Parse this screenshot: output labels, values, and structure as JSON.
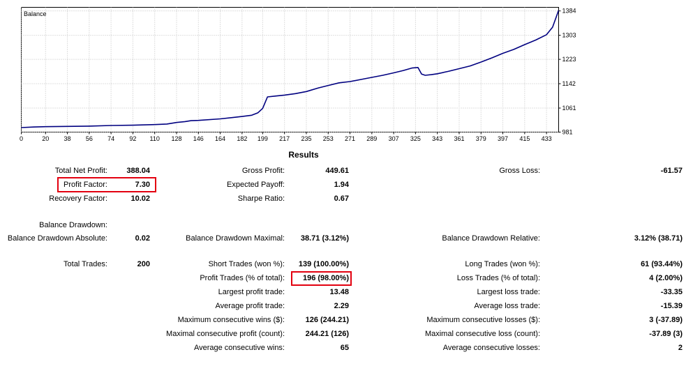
{
  "chart_data": {
    "type": "line",
    "title": "Balance",
    "xlabel": "",
    "ylabel": "",
    "xlim": [
      0,
      443
    ],
    "ylim": [
      981,
      1396
    ],
    "x_ticks": [
      "0",
      "20",
      "38",
      "56",
      "74",
      "92",
      "110",
      "128",
      "146",
      "164",
      "182",
      "199",
      "217",
      "235",
      "253",
      "271",
      "289",
      "307",
      "325",
      "343",
      "361",
      "379",
      "397",
      "415",
      "433"
    ],
    "y_ticks": [
      "1384",
      "1303",
      "1223",
      "1142",
      "1061",
      "981"
    ],
    "series": [
      {
        "color": "#000080",
        "points": [
          [
            0,
            996
          ],
          [
            10,
            998
          ],
          [
            20,
            999
          ],
          [
            38,
            1000
          ],
          [
            56,
            1001
          ],
          [
            74,
            1003
          ],
          [
            92,
            1004
          ],
          [
            110,
            1006
          ],
          [
            120,
            1008
          ],
          [
            128,
            1013
          ],
          [
            135,
            1016
          ],
          [
            140,
            1019
          ],
          [
            146,
            1020
          ],
          [
            164,
            1025
          ],
          [
            175,
            1030
          ],
          [
            182,
            1033
          ],
          [
            190,
            1037
          ],
          [
            195,
            1045
          ],
          [
            199,
            1060
          ],
          [
            203,
            1098
          ],
          [
            210,
            1101
          ],
          [
            217,
            1104
          ],
          [
            226,
            1109
          ],
          [
            235,
            1116
          ],
          [
            245,
            1128
          ],
          [
            253,
            1136
          ],
          [
            262,
            1145
          ],
          [
            271,
            1149
          ],
          [
            280,
            1156
          ],
          [
            289,
            1163
          ],
          [
            298,
            1170
          ],
          [
            307,
            1178
          ],
          [
            315,
            1186
          ],
          [
            322,
            1194
          ],
          [
            327,
            1196
          ],
          [
            330,
            1174
          ],
          [
            333,
            1170
          ],
          [
            338,
            1172
          ],
          [
            343,
            1175
          ],
          [
            352,
            1183
          ],
          [
            361,
            1192
          ],
          [
            370,
            1201
          ],
          [
            379,
            1214
          ],
          [
            388,
            1228
          ],
          [
            397,
            1243
          ],
          [
            406,
            1256
          ],
          [
            415,
            1272
          ],
          [
            424,
            1287
          ],
          [
            433,
            1305
          ],
          [
            438,
            1330
          ],
          [
            443,
            1386
          ]
        ]
      }
    ]
  },
  "results": {
    "title": "Results",
    "items": [
      {
        "label": "Total Net Profit:",
        "value": "388.04"
      },
      {
        "label": "Gross Profit:",
        "value": "449.61"
      },
      {
        "label": "Gross Loss:",
        "value": "-61.57"
      },
      {
        "label": "Profit Factor:",
        "value": "7.30"
      },
      {
        "label": "Expected Payoff:",
        "value": "1.94"
      },
      {
        "label": "Recovery Factor:",
        "value": "10.02"
      },
      {
        "label": "Sharpe Ratio:",
        "value": "0.67"
      },
      {
        "label": "Balance Drawdown:",
        "value": ""
      },
      {
        "label": "Balance Drawdown Absolute:",
        "value": "0.02"
      },
      {
        "label": "Balance Drawdown Maximal:",
        "value": "38.71 (3.12%)"
      },
      {
        "label": "Balance Drawdown Relative:",
        "value": "3.12% (38.71)"
      },
      {
        "label": "Total Trades:",
        "value": "200"
      },
      {
        "label": "Short Trades (won %):",
        "value": "139 (100.00%)"
      },
      {
        "label": "Long Trades (won %):",
        "value": "61 (93.44%)"
      },
      {
        "label": "Profit Trades (% of total):",
        "value": "196 (98.00%)"
      },
      {
        "label": "Loss Trades (% of total):",
        "value": "4 (2.00%)"
      },
      {
        "label": "Largest profit trade:",
        "value": "13.48"
      },
      {
        "label": "Largest loss trade:",
        "value": "-33.35"
      },
      {
        "label": "Average profit trade:",
        "value": "2.29"
      },
      {
        "label": "Average loss trade:",
        "value": "-15.39"
      },
      {
        "label": "Maximum consecutive wins ($):",
        "value": "126 (244.21)"
      },
      {
        "label": "Maximum consecutive losses ($):",
        "value": "3 (-37.89)"
      },
      {
        "label": "Maximal consecutive profit (count):",
        "value": "244.21 (126)"
      },
      {
        "label": "Maximal consecutive loss (count):",
        "value": "-37.89 (3)"
      },
      {
        "label": "Average consecutive wins:",
        "value": "65"
      },
      {
        "label": "Average consecutive losses:",
        "value": "2"
      }
    ]
  },
  "colors": {
    "line": "#000080",
    "grid": "#c0c0c0",
    "highlight": "#e3000f"
  }
}
